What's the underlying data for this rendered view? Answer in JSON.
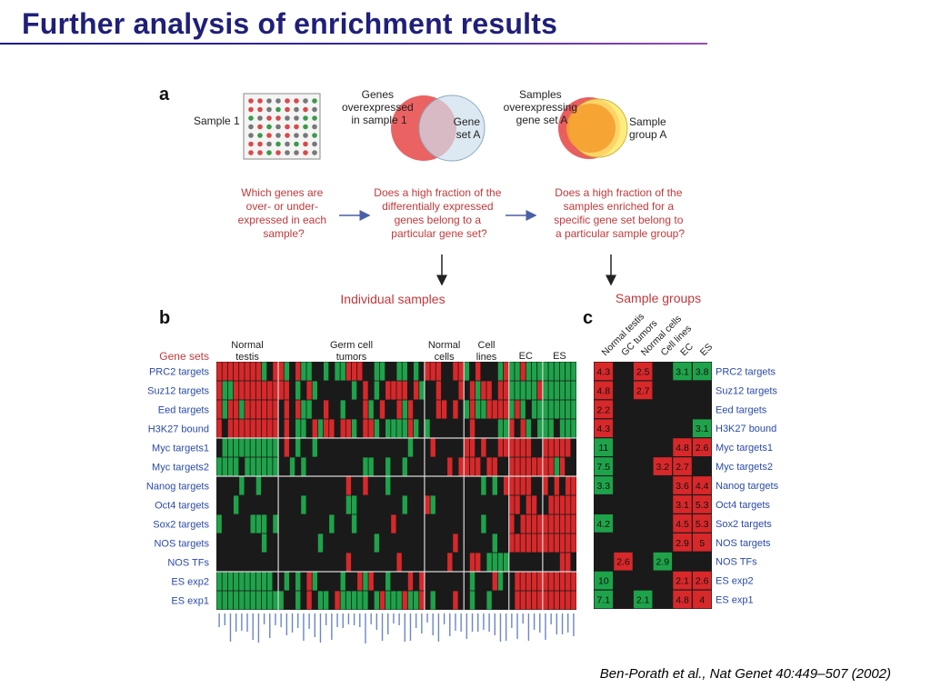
{
  "slide": {
    "title": "Further analysis of enrichment results",
    "citation": "Ben-Porath et al., Nat Genet 40:449–507 (2002)"
  },
  "panel_a": {
    "label": "a",
    "sample_label": "Sample 1",
    "venn1": {
      "label_lines": [
        "Genes",
        "overexpressed",
        "in sample 1"
      ],
      "set_label_lines": [
        "Gene",
        "set A"
      ]
    },
    "venn2": {
      "label_lines": [
        "Samples",
        "overexpressing",
        "gene set A"
      ],
      "set_label_lines": [
        "Sample",
        "group A"
      ]
    },
    "questions": [
      [
        "Which genes are",
        "over- or under-",
        "expressed in each",
        "sample?"
      ],
      [
        "Does a high fraction of the",
        "differentially expressed",
        "genes belong to a",
        "particular gene set?"
      ],
      [
        "Does a high fraction of the",
        "samples enriched for a",
        "specific gene set belong to",
        "a particular sample group?"
      ]
    ],
    "outcome_left": "Individual samples",
    "outcome_right": "Sample groups",
    "colors": {
      "question_text": "#c0393b",
      "arrow": "#4a5fa8",
      "dot_red": "#d84a4a",
      "dot_green": "#3a9a4a",
      "dot_gray": "#777777"
    }
  },
  "panel_b": {
    "label": "b",
    "gene_sets_header": "Gene sets",
    "col_groups": [
      {
        "lines": [
          "Normal",
          "testis"
        ],
        "cols": 11
      },
      {
        "lines": [
          "Germ cell",
          "tumors"
        ],
        "cols": 26
      },
      {
        "lines": [
          "Normal",
          "cells"
        ],
        "cols": 7
      },
      {
        "lines": [
          "Cell",
          "lines"
        ],
        "cols": 8
      },
      {
        "lines": [
          "EC"
        ],
        "cols": 6
      },
      {
        "lines": [
          "ES"
        ],
        "cols": 6
      }
    ],
    "rows": [
      "PRC2 targets",
      "Suz12 targets",
      "Eed targets",
      "H3K27 bound",
      "Myc targets1",
      "Myc targets2",
      "Nanog targets",
      "Oct4 targets",
      "Sox2 targets",
      "NOS targets",
      "NOS TFs",
      "ES exp2",
      "ES exp1"
    ],
    "row_blocks": [
      4,
      2,
      5,
      2
    ],
    "colors": {
      "up": "#d8282a",
      "down": "#1ea34a",
      "none": "#1a1a1a",
      "row_label": "#2a4aa8",
      "header": "#c0393b"
    }
  },
  "panel_c": {
    "label": "c",
    "columns": [
      "Normal testis",
      "GC tumors",
      "Normal cells",
      "Cell lines",
      "EC",
      "ES"
    ],
    "rows": [
      "PRC2 targets",
      "Suz12 targets",
      "Eed targets",
      "H3K27 bound",
      "Myc targets1",
      "Myc targets2",
      "Nanog targets",
      "Oct4 targets",
      "Sox2 targets",
      "NOS targets",
      "NOS TFs",
      "ES exp2",
      "ES exp1"
    ],
    "cells": [
      [
        {
          "c": "r",
          "v": "4.3"
        },
        {
          "c": "k"
        },
        {
          "c": "r",
          "v": "2.5"
        },
        {
          "c": "k"
        },
        {
          "c": "g",
          "v": "3.1"
        },
        {
          "c": "g",
          "v": "3.8"
        }
      ],
      [
        {
          "c": "r",
          "v": "4.8"
        },
        {
          "c": "k"
        },
        {
          "c": "r",
          "v": "2.7"
        },
        {
          "c": "k"
        },
        {
          "c": "k"
        },
        {
          "c": "k"
        }
      ],
      [
        {
          "c": "r",
          "v": "2.2"
        },
        {
          "c": "k"
        },
        {
          "c": "k"
        },
        {
          "c": "k"
        },
        {
          "c": "k"
        },
        {
          "c": "k"
        }
      ],
      [
        {
          "c": "r",
          "v": "4.3"
        },
        {
          "c": "k"
        },
        {
          "c": "k"
        },
        {
          "c": "k"
        },
        {
          "c": "k"
        },
        {
          "c": "g",
          "v": "3.1"
        }
      ],
      [
        {
          "c": "g",
          "v": "11"
        },
        {
          "c": "k"
        },
        {
          "c": "k"
        },
        {
          "c": "k"
        },
        {
          "c": "r",
          "v": "4.8"
        },
        {
          "c": "r",
          "v": "2.6"
        }
      ],
      [
        {
          "c": "g",
          "v": "7.5"
        },
        {
          "c": "k"
        },
        {
          "c": "k"
        },
        {
          "c": "r",
          "v": "3.2"
        },
        {
          "c": "r",
          "v": "2.7"
        },
        {
          "c": "k"
        }
      ],
      [
        {
          "c": "g",
          "v": "3.3"
        },
        {
          "c": "k"
        },
        {
          "c": "k"
        },
        {
          "c": "k"
        },
        {
          "c": "r",
          "v": "3.6"
        },
        {
          "c": "r",
          "v": "4.4"
        }
      ],
      [
        {
          "c": "k"
        },
        {
          "c": "k"
        },
        {
          "c": "k"
        },
        {
          "c": "k"
        },
        {
          "c": "r",
          "v": "3.1"
        },
        {
          "c": "r",
          "v": "5.3"
        }
      ],
      [
        {
          "c": "g",
          "v": "4.2"
        },
        {
          "c": "k"
        },
        {
          "c": "k"
        },
        {
          "c": "k"
        },
        {
          "c": "r",
          "v": "4.5"
        },
        {
          "c": "r",
          "v": "5.3"
        }
      ],
      [
        {
          "c": "k"
        },
        {
          "c": "k"
        },
        {
          "c": "k"
        },
        {
          "c": "k"
        },
        {
          "c": "r",
          "v": "2.9"
        },
        {
          "c": "r",
          "v": "5"
        }
      ],
      [
        {
          "c": "k"
        },
        {
          "c": "r",
          "v": "2.6"
        },
        {
          "c": "k"
        },
        {
          "c": "g",
          "v": "2.9"
        },
        {
          "c": "k"
        },
        {
          "c": "k"
        }
      ],
      [
        {
          "c": "g",
          "v": "10"
        },
        {
          "c": "k"
        },
        {
          "c": "k"
        },
        {
          "c": "k"
        },
        {
          "c": "r",
          "v": "2.1"
        },
        {
          "c": "r",
          "v": "2.6"
        }
      ],
      [
        {
          "c": "g",
          "v": "7.1"
        },
        {
          "c": "k"
        },
        {
          "c": "g",
          "v": "2.1"
        },
        {
          "c": "k"
        },
        {
          "c": "r",
          "v": "4.8"
        },
        {
          "c": "r",
          "v": "4"
        }
      ]
    ],
    "colors": {
      "r": "#d8282a",
      "g": "#1ea34a",
      "k": "#1a1a1a",
      "row_label": "#2a4aa8"
    }
  }
}
